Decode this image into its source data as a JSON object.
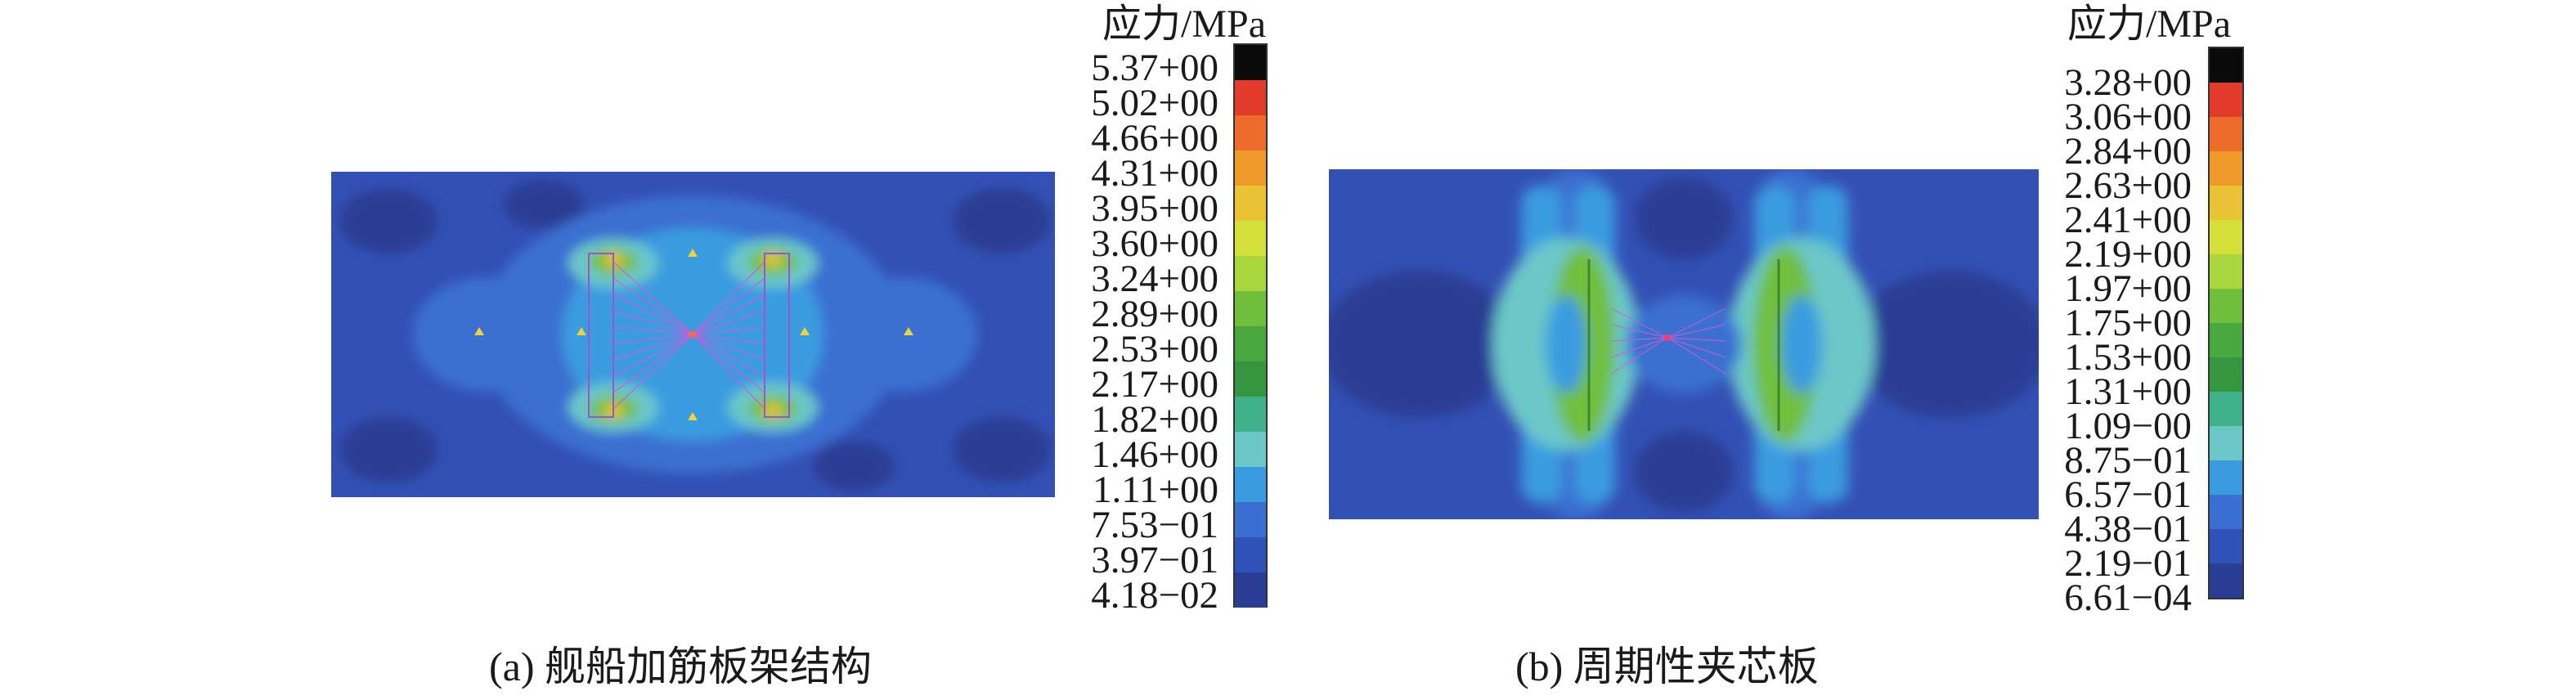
{
  "panels": [
    {
      "legend_title": "应力/MPa",
      "legend_ticks": [
        "5.37+00",
        "5.02+00",
        "4.66+00",
        "4.31+00",
        "3.95+00",
        "3.60+00",
        "3.24+00",
        "2.89+00",
        "2.53+00",
        "2.17+00",
        "1.82+00",
        "1.46+00",
        "1.11+00",
        "7.53−01",
        "3.97−01",
        "4.18−02"
      ],
      "caption": "(a) 舰船加筋板架结构"
    },
    {
      "legend_title": "应力/MPa",
      "legend_ticks": [
        "3.28+00",
        "3.06+00",
        "2.84+00",
        "2.63+00",
        "2.41+00",
        "2.19+00",
        "1.97+00",
        "1.75+00",
        "1.53+00",
        "1.31+00",
        "1.09−00",
        "8.75−01",
        "6.57−01",
        "4.38−01",
        "2.19−01",
        "6.61−04"
      ],
      "caption": "(b) 周期性夹芯板"
    }
  ],
  "colormap": [
    "#0a0a0a",
    "#e23b2b",
    "#ec6a2a",
    "#ef9a2a",
    "#e9c235",
    "#d4df3a",
    "#a9d53d",
    "#6fbf3d",
    "#4aa840",
    "#36953f",
    "#3fb08a",
    "#6cc7c9",
    "#3a9be0",
    "#3a6fd1",
    "#2f52b8",
    "#2a3d94"
  ],
  "background_color": "#3350b5"
}
